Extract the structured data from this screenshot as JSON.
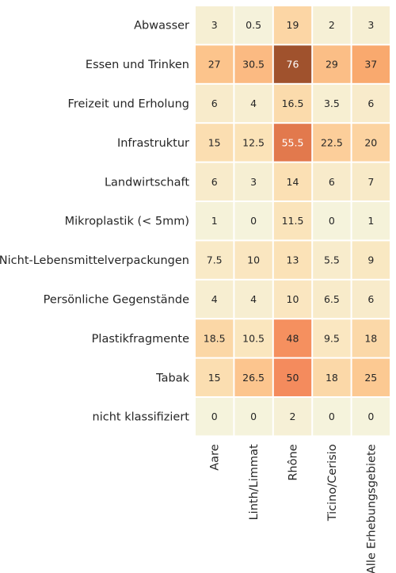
{
  "chart_data": {
    "type": "heatmap",
    "title": "",
    "xlabel": "",
    "ylabel": "",
    "columns": [
      "Aare",
      "Linth/Limmat",
      "Rhône",
      "Ticino/Cerisio",
      "Alle Erhebungsgebiete"
    ],
    "rows": [
      "Abwasser",
      "Essen und Trinken",
      "Freizeit und Erholung",
      "Infrastruktur",
      "Landwirtschaft",
      "Mikroplastik (< 5mm)",
      "Nicht-Lebensmittelverpackungen",
      "Persönliche Gegenstände",
      "Plastikfragmente",
      "Tabak",
      "nicht klassifiziert"
    ],
    "values": [
      [
        "3",
        "0.5",
        "19",
        "2",
        "3"
      ],
      [
        "27",
        "30.5",
        "76",
        "29",
        "37"
      ],
      [
        "6",
        "4",
        "16.5",
        "3.5",
        "6"
      ],
      [
        "15",
        "12.5",
        "55.5",
        "22.5",
        "20"
      ],
      [
        "6",
        "3",
        "14",
        "6",
        "7"
      ],
      [
        "1",
        "0",
        "11.5",
        "0",
        "1"
      ],
      [
        "7.5",
        "10",
        "13",
        "5.5",
        "9"
      ],
      [
        "4",
        "4",
        "10",
        "6.5",
        "6"
      ],
      [
        "18.5",
        "10.5",
        "48",
        "9.5",
        "18"
      ],
      [
        "15",
        "26.5",
        "50",
        "18",
        "25"
      ],
      [
        "0",
        "0",
        "2",
        "0",
        "0"
      ]
    ],
    "color_scale": {
      "min": 0,
      "max": 76,
      "stops": [
        "#f5f3dc",
        "#fbe3b8",
        "#fcc891",
        "#f9a66b",
        "#f48a5c",
        "#c55e34",
        "#a0522d"
      ]
    },
    "grid": false,
    "legend": "none"
  }
}
